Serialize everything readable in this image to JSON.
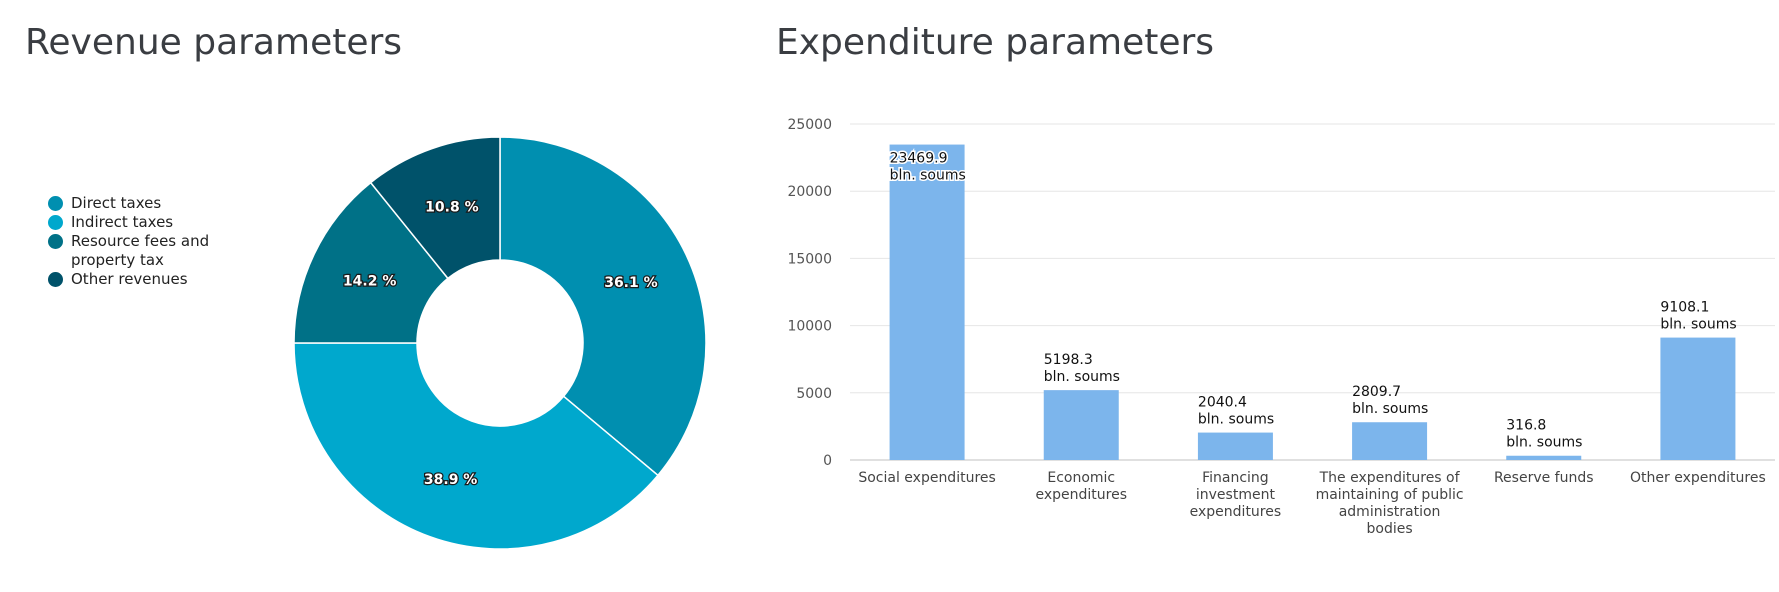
{
  "chart_data": [
    {
      "type": "pie",
      "variant": "donut",
      "title": "Revenue parameters",
      "legend_position": "left",
      "slices": [
        {
          "label": "Direct taxes",
          "value": 36.1,
          "display": "36.1 %",
          "color": "#008fb0"
        },
        {
          "label": "Indirect taxes",
          "value": 38.9,
          "display": "38.9 %",
          "color": "#00a8cd"
        },
        {
          "label": "Resource fees and property tax",
          "value": 14.2,
          "display": "14.2 %",
          "color": "#007187"
        },
        {
          "label": "Other revenues",
          "value": 10.8,
          "display": "10.8 %",
          "color": "#00526a"
        }
      ]
    },
    {
      "type": "bar",
      "title": "Expenditure parameters",
      "xlabel": "",
      "ylabel": "",
      "ylim": [
        0,
        25000
      ],
      "yticks": [
        0,
        5000,
        10000,
        15000,
        20000,
        25000
      ],
      "grid": true,
      "bar_color": "#7cb5ec",
      "unit_label": "bln. soums",
      "categories": [
        "Social expenditures",
        "Economic expenditures",
        "Financing investment expenditures",
        "The expenditures of maintaining of public administration bodies",
        "Reserve funds",
        "Other expenditures"
      ],
      "values": [
        23469.9,
        5198.3,
        2040.4,
        2809.7,
        316.8,
        9108.1
      ],
      "value_labels": [
        "23469.9",
        "5198.3",
        "2040.4",
        "2809.7",
        "316.8",
        "9108.1"
      ]
    }
  ]
}
